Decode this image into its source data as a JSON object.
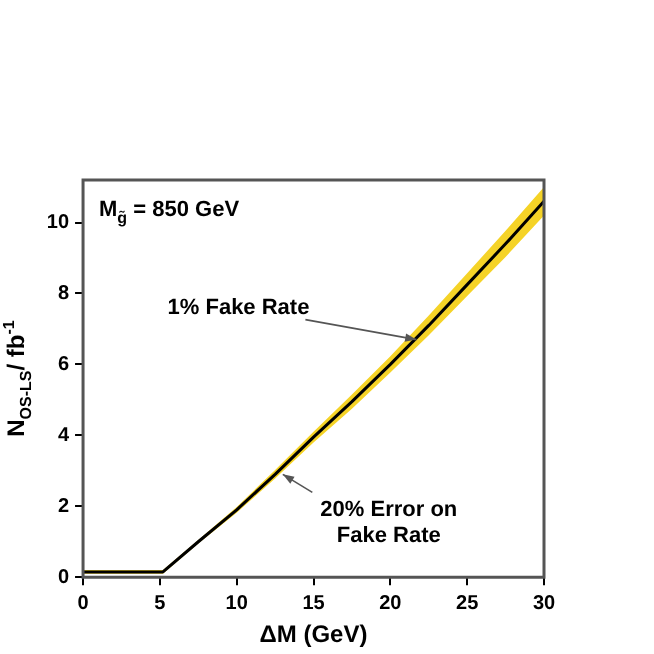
{
  "chart_data": {
    "type": "line",
    "xlabel": "ΔM (GeV)",
    "ylabel": "N$_{OS-LS}$/ fb$^{-1}$",
    "xlim": [
      0,
      30
    ],
    "xticks": [
      0,
      5,
      10,
      15,
      20,
      25,
      30
    ],
    "ylim": [
      0,
      11.2
    ],
    "yticks": [
      0,
      2,
      4,
      6,
      8,
      10
    ],
    "grid": false,
    "legend": false,
    "marker": "none",
    "line_style": "solid",
    "series": [
      {
        "color": "#000000",
        "x": [
          0,
          5.2,
          7.5,
          10,
          12.5,
          15,
          17.5,
          20,
          22.5,
          25,
          27.5,
          30
        ],
        "values": [
          0.15,
          0.15,
          1.0,
          1.9,
          2.9,
          3.95,
          4.95,
          6.0,
          7.1,
          8.25,
          9.4,
          10.6
        ],
        "lower": [
          0.1,
          0.1,
          0.95,
          1.82,
          2.78,
          3.8,
          4.75,
          5.77,
          6.82,
          7.93,
          9.03,
          10.2
        ],
        "upper": [
          0.2,
          0.2,
          1.05,
          1.98,
          3.02,
          4.1,
          5.15,
          6.23,
          7.38,
          8.57,
          9.77,
          11.0
        ]
      }
    ],
    "annotations": [
      "M$_{g̃}$ = 850 GeV",
      {
        "text": "1% Fake Rate",
        "x": 21.7,
        "y": 6.7
      },
      {
        "text": "20% Error on Fake Rate",
        "x": 13,
        "y": 2.9
      }
    ]
  }
}
